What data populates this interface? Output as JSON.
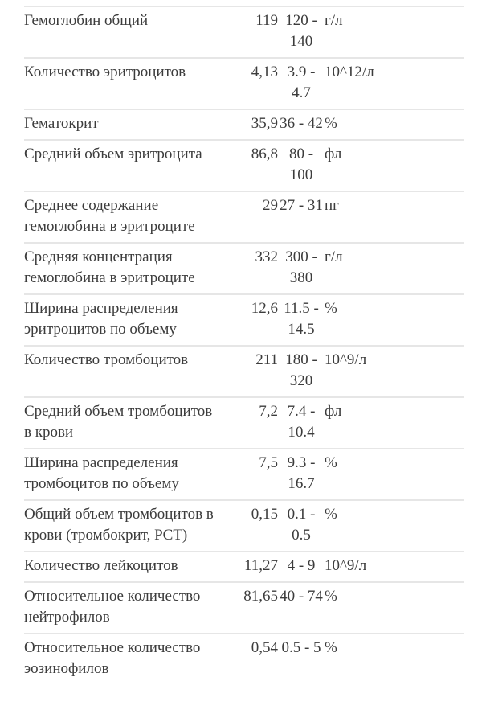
{
  "report": {
    "rows": [
      {
        "name": "Гемоглобин общий",
        "value": "119",
        "range": "120 - 140",
        "unit": "г/л"
      },
      {
        "name": "Количество эритроцитов",
        "value": "4,13",
        "range": "3.9 - 4.7",
        "unit": "10^12/л"
      },
      {
        "name": "Гематокрит",
        "value": "35,9",
        "range": "36 - 42",
        "unit": "%"
      },
      {
        "name": "Средний объем эритроцита",
        "value": "86,8",
        "range": "80 - 100",
        "unit": "фл"
      },
      {
        "name": "Среднее содержание гемоглобина в эритроците",
        "value": "29",
        "range": "27 - 31",
        "unit": "пг"
      },
      {
        "name": "Средняя концентрация гемоглобина в эритроците",
        "value": "332",
        "range": "300 - 380",
        "unit": "г/л"
      },
      {
        "name": "Ширина распределения эритроцитов по объему",
        "value": "12,6",
        "range": "11.5 - 14.5",
        "unit": "%"
      },
      {
        "name": "Количество тромбоцитов",
        "value": "211",
        "range": "180 - 320",
        "unit": "10^9/л"
      },
      {
        "name": "Средний объем тромбоцитов в крови",
        "value": "7,2",
        "range": "7.4 - 10.4",
        "unit": "фл"
      },
      {
        "name": "Ширина распределения тромбоцитов по объему",
        "value": "7,5",
        "range": "9.3 - 16.7",
        "unit": "%"
      },
      {
        "name": "Общий объем тромбоцитов в крови (тромбокрит, PCT)",
        "value": "0,15",
        "range": "0.1 - 0.5",
        "unit": "%"
      },
      {
        "name": "Количество лейкоцитов",
        "value": "11,27",
        "range": "4 - 9",
        "unit": "10^9/л"
      },
      {
        "name": "Относительное количество нейтрофилов",
        "value": "81,65",
        "range": "40 - 74",
        "unit": "%"
      },
      {
        "name": "Относительное количество эозинофилов",
        "value": "0,54",
        "range": "0.5 - 5",
        "unit": "%"
      }
    ]
  },
  "colors": {
    "text": "#3c3c3c",
    "divider": "#e6e6e6",
    "background": "#ffffff"
  }
}
